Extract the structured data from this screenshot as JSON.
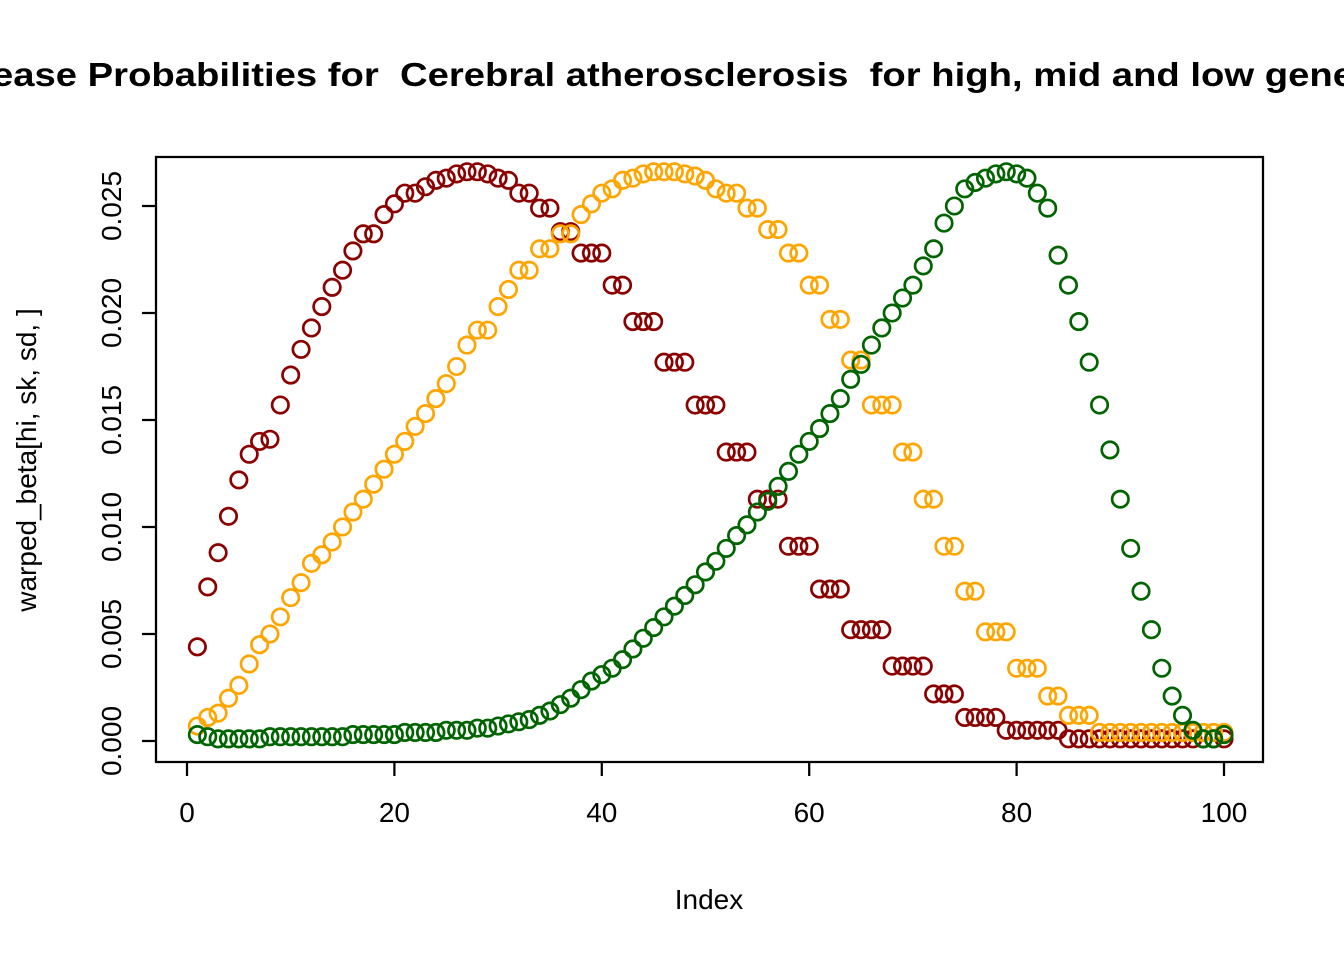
{
  "page": {
    "background": "#FFFFFF",
    "text_color": "#000000",
    "axis_color": "#000000"
  },
  "chart_data": {
    "type": "scatter",
    "title": "ease Probabilities for  Cerebral atherosclerosis  for high, mid and low gene",
    "title_note": "title is clipped at both image edges",
    "xlabel": "Index",
    "ylabel": "warped_beta[hi, sk, sd, ]",
    "marker": "open-circle",
    "grid": false,
    "legend": "none",
    "x_start": 1,
    "x_end": 100,
    "xlim": [
      -3,
      104
    ],
    "ylim": [
      0,
      0.0266
    ],
    "x_tick_values": [
      0,
      20,
      40,
      60,
      80,
      100
    ],
    "x_tick_labels": [
      "0",
      "20",
      "40",
      "60",
      "80",
      "100"
    ],
    "y_tick_values": [
      0.0,
      0.005,
      0.01,
      0.015,
      0.02,
      0.025
    ],
    "y_tick_labels": [
      "0.000",
      "0.005",
      "0.010",
      "0.015",
      "0.020",
      "0.025"
    ],
    "series": [
      {
        "name": "high (dark red)",
        "color": "#8B0000",
        "values": [
          0.0044,
          0.0072,
          0.0088,
          0.0105,
          0.0122,
          0.0134,
          0.014,
          0.0141,
          0.0157,
          0.0171,
          0.0183,
          0.0193,
          0.0203,
          0.0212,
          0.022,
          0.0229,
          0.0237,
          0.0237,
          0.0246,
          0.0251,
          0.0256,
          0.0256,
          0.0259,
          0.0262,
          0.0263,
          0.0265,
          0.0266,
          0.0266,
          0.0265,
          0.0263,
          0.0262,
          0.0256,
          0.0256,
          0.0249,
          0.0249,
          0.0238,
          0.0238,
          0.0228,
          0.0228,
          0.0228,
          0.0213,
          0.0213,
          0.0196,
          0.0196,
          0.0196,
          0.0177,
          0.0177,
          0.0177,
          0.0157,
          0.0157,
          0.0157,
          0.0135,
          0.0135,
          0.0135,
          0.0113,
          0.0113,
          0.0113,
          0.0091,
          0.0091,
          0.0091,
          0.0071,
          0.0071,
          0.0071,
          0.0052,
          0.0052,
          0.0052,
          0.0052,
          0.0035,
          0.0035,
          0.0035,
          0.0035,
          0.0022,
          0.0022,
          0.0022,
          0.0011,
          0.0011,
          0.0011,
          0.0011,
          0.0005,
          0.0005,
          0.0005,
          0.0005,
          0.0005,
          0.0005,
          0.0001,
          0.0001,
          0.0001,
          0.0001,
          0.0001,
          0.0001,
          0.0001,
          0.0001,
          0.0001,
          0.0001,
          0.0001,
          0.0001,
          0.0001,
          0.0001,
          0.0001,
          0.0001
        ]
      },
      {
        "name": "mid (orange)",
        "color": "#FFA500",
        "values": [
          0.0007,
          0.0011,
          0.0013,
          0.002,
          0.0026,
          0.0036,
          0.0045,
          0.005,
          0.0058,
          0.0067,
          0.0074,
          0.0083,
          0.0087,
          0.0093,
          0.01,
          0.0107,
          0.0113,
          0.012,
          0.0127,
          0.0134,
          0.014,
          0.0147,
          0.0153,
          0.016,
          0.0167,
          0.0175,
          0.0185,
          0.0192,
          0.0192,
          0.0203,
          0.0211,
          0.022,
          0.022,
          0.023,
          0.023,
          0.0237,
          0.0237,
          0.0246,
          0.0251,
          0.0256,
          0.0258,
          0.0262,
          0.0263,
          0.0265,
          0.0266,
          0.0266,
          0.0266,
          0.0265,
          0.0264,
          0.0262,
          0.0258,
          0.0256,
          0.0256,
          0.0249,
          0.0249,
          0.0239,
          0.0239,
          0.0228,
          0.0228,
          0.0213,
          0.0213,
          0.0197,
          0.0197,
          0.0178,
          0.0178,
          0.0157,
          0.0157,
          0.0157,
          0.0135,
          0.0135,
          0.0113,
          0.0113,
          0.0091,
          0.0091,
          0.007,
          0.007,
          0.0051,
          0.0051,
          0.0051,
          0.0034,
          0.0034,
          0.0034,
          0.0021,
          0.0021,
          0.0012,
          0.0012,
          0.0012,
          0.0004,
          0.0004,
          0.0004,
          0.0004,
          0.0004,
          0.0004,
          0.0004,
          0.0004,
          0.0004,
          0.0004,
          0.0004,
          0.0004,
          0.0004
        ]
      },
      {
        "name": "low (dark green)",
        "color": "#006400",
        "values": [
          0.0003,
          0.0002,
          0.0001,
          0.0001,
          0.0001,
          0.0001,
          0.0001,
          0.0002,
          0.0002,
          0.0002,
          0.0002,
          0.0002,
          0.0002,
          0.0002,
          0.0002,
          0.0003,
          0.0003,
          0.0003,
          0.0003,
          0.0003,
          0.0004,
          0.0004,
          0.0004,
          0.0004,
          0.0005,
          0.0005,
          0.0005,
          0.0006,
          0.0006,
          0.0007,
          0.0008,
          0.0009,
          0.001,
          0.0012,
          0.0014,
          0.0017,
          0.002,
          0.0024,
          0.0028,
          0.0031,
          0.0034,
          0.0038,
          0.0043,
          0.0048,
          0.0053,
          0.0058,
          0.0063,
          0.0068,
          0.0073,
          0.0079,
          0.0084,
          0.009,
          0.0096,
          0.0101,
          0.0107,
          0.0112,
          0.0119,
          0.0126,
          0.0134,
          0.014,
          0.0146,
          0.0153,
          0.016,
          0.0169,
          0.0176,
          0.0185,
          0.0193,
          0.02,
          0.0207,
          0.0213,
          0.0222,
          0.023,
          0.0242,
          0.025,
          0.0258,
          0.0261,
          0.0263,
          0.0265,
          0.0266,
          0.0265,
          0.0263,
          0.0256,
          0.0249,
          0.0227,
          0.0213,
          0.0196,
          0.0177,
          0.0157,
          0.0136,
          0.0113,
          0.009,
          0.007,
          0.0052,
          0.0034,
          0.0021,
          0.0012,
          0.0005,
          0.0001,
          0.0001,
          0.0003
        ]
      }
    ]
  }
}
